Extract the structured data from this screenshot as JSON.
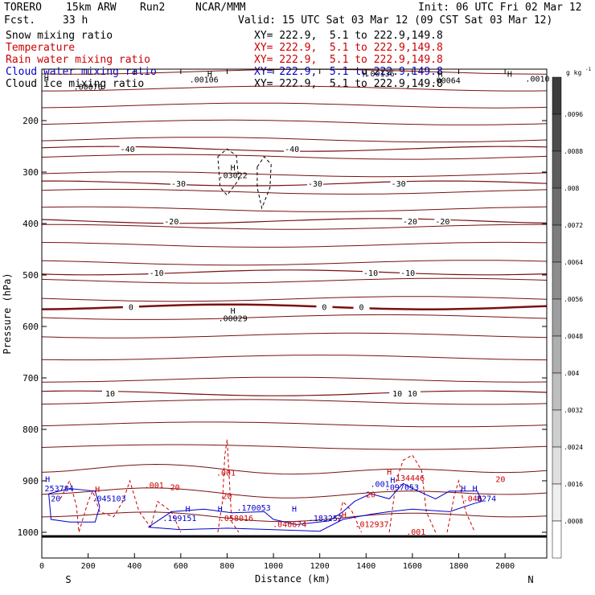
{
  "header": {
    "model": "TORERO",
    "res": "15km ARW",
    "run": "Run2",
    "org": "NCAR/MMM",
    "init": "Init: 06 UTC Fri 02 Mar 12",
    "fcst_label": "Fcst.",
    "fcst_value": "33 h",
    "valid": "Valid: 15 UTC Sat 03 Mar 12 (09 CST Sat 03 Mar 12)"
  },
  "fields": [
    {
      "label": "Snow mixing ratio",
      "xy": "XY= 222.9,  5.1 to 222.9,149.8",
      "color": "#000000"
    },
    {
      "label": "Temperature",
      "xy": "XY= 222.9,  5.1 to 222.9,149.8",
      "color": "#cc0000"
    },
    {
      "label": "Rain water mixing ratio",
      "xy": "XY= 222.9,  5.1 to 222.9,149.8",
      "color": "#cc0000"
    },
    {
      "label": "Cloud water mixing ratio",
      "xy": "XY= 222.9,  5.1 to 222.9,149.8",
      "color": "#0000cc"
    },
    {
      "label": "Cloud ice mixing ratio",
      "xy": "XY= 222.9,  5.1 to 222.9,149.8",
      "color": "#000000"
    }
  ],
  "chart_data": {
    "type": "line",
    "xlabel": "Distance (km)",
    "ylabel": "Pressure (hPa)",
    "xlim": [
      0,
      2180
    ],
    "ylim": [
      1050,
      100
    ],
    "x_ticks": [
      0,
      200,
      400,
      600,
      800,
      1000,
      1200,
      1400,
      1600,
      1800,
      2000
    ],
    "y_ticks": [
      200,
      300,
      400,
      500,
      600,
      700,
      800,
      900,
      1000
    ],
    "end_labels": {
      "left": "S",
      "right": "N"
    },
    "colorbar": {
      "unit": "g kg",
      "unit_sup": "-1",
      "levels": [
        ".0096",
        ".0088",
        ".008",
        ".0072",
        ".0064",
        ".0056",
        ".0048",
        ".004",
        ".0032",
        ".0024",
        ".0016",
        ".0008"
      ]
    },
    "isotherms": [
      {
        "p": 255,
        "label": "-40",
        "label_x": [
          370,
          1080
        ]
      },
      {
        "p": 322,
        "label": "-30",
        "label_x": [
          590,
          1180,
          1540
        ]
      },
      {
        "p": 395,
        "label": "-20",
        "label_x": [
          560,
          1590,
          1730
        ]
      },
      {
        "p": 495,
        "label": "-10",
        "label_x": [
          495,
          1420,
          1580
        ]
      },
      {
        "p": 562,
        "label": "0",
        "label_x": [
          385,
          1220,
          1380
        ],
        "bold": true
      },
      {
        "p": 730,
        "label": "10",
        "label_x": [
          295,
          1535,
          1600
        ]
      }
    ],
    "contour_labels": [
      {
        "x": 200,
        "p": 140,
        "text": ".00076",
        "color": "#000000"
      },
      {
        "x": 700,
        "p": 126,
        "text": ".00106",
        "color": "#000000"
      },
      {
        "x": 1460,
        "p": 114,
        "text": ".00136",
        "color": "#000000"
      },
      {
        "x": 1745,
        "p": 127,
        "text": ".00064",
        "color": "#000000"
      },
      {
        "x": 2140,
        "p": 124,
        "text": ".0010",
        "color": "#000000"
      },
      {
        "x": 825,
        "p": 312,
        "text": ".03022",
        "color": "#000000"
      },
      {
        "x": 825,
        "p": 590,
        "text": ".00029",
        "color": "#000000"
      },
      {
        "x": 75,
        "p": 920,
        "text": "253784",
        "color": "#0000cc"
      },
      {
        "x": 290,
        "p": 940,
        "text": ".045103",
        "color": "#0000cc"
      },
      {
        "x": 595,
        "p": 978,
        "text": ".199151",
        "color": "#0000cc"
      },
      {
        "x": 840,
        "p": 978,
        "text": ".058016",
        "color": "#cc0000"
      },
      {
        "x": 915,
        "p": 958,
        "text": ".170053",
        "color": "#0000cc"
      },
      {
        "x": 1070,
        "p": 990,
        "text": ".040674",
        "color": "#cc0000"
      },
      {
        "x": 1225,
        "p": 978,
        "text": ".183257",
        "color": "#0000cc"
      },
      {
        "x": 1425,
        "p": 990,
        "text": ".012937",
        "color": "#cc0000"
      },
      {
        "x": 1590,
        "p": 900,
        "text": "134446",
        "color": "#cc0000"
      },
      {
        "x": 1555,
        "p": 918,
        "text": ".097053",
        "color": "#0000cc"
      },
      {
        "x": 1860,
        "p": 940,
        "text": ".046",
        "color": "#cc0000"
      },
      {
        "x": 1920,
        "p": 940,
        "text": "8274",
        "color": "#0000cc"
      },
      {
        "x": 485,
        "p": 914,
        "text": ".001",
        "color": "#cc0000"
      },
      {
        "x": 795,
        "p": 890,
        "text": ".001",
        "color": "#cc0000"
      },
      {
        "x": 1460,
        "p": 912,
        "text": ".001",
        "color": "#0000cc"
      },
      {
        "x": 1615,
        "p": 1005,
        "text": ".001",
        "color": "#cc0000"
      },
      {
        "x": 1980,
        "p": 902,
        "text": "20",
        "color": "#cc0000"
      },
      {
        "x": 1420,
        "p": 932,
        "text": "20",
        "color": "#cc0000"
      },
      {
        "x": 575,
        "p": 918,
        "text": "20",
        "color": "#cc0000"
      },
      {
        "x": 800,
        "p": 935,
        "text": "20",
        "color": "#cc0000"
      },
      {
        "x": 60,
        "p": 940,
        "text": "20",
        "color": "#0000cc"
      }
    ],
    "highs": [
      {
        "x": 20,
        "p": 123,
        "color": "#000000"
      },
      {
        "x": 725,
        "p": 115,
        "color": "#000000"
      },
      {
        "x": 1395,
        "p": 115,
        "color": "#000000"
      },
      {
        "x": 1720,
        "p": 115,
        "color": "#000000"
      },
      {
        "x": 2020,
        "p": 115,
        "color": "#000000"
      },
      {
        "x": 825,
        "p": 297,
        "color": "#000000"
      },
      {
        "x": 825,
        "p": 575,
        "color": "#000000"
      },
      {
        "x": 25,
        "p": 902,
        "color": "#0000cc"
      },
      {
        "x": 240,
        "p": 922,
        "color": "#cc0000"
      },
      {
        "x": 630,
        "p": 960,
        "color": "#0000cc"
      },
      {
        "x": 770,
        "p": 960,
        "color": "#0000cc"
      },
      {
        "x": 1090,
        "p": 960,
        "color": "#0000cc"
      },
      {
        "x": 1305,
        "p": 972,
        "color": "#cc0000"
      },
      {
        "x": 1500,
        "p": 888,
        "color": "#cc0000"
      },
      {
        "x": 1515,
        "p": 904,
        "color": "#0000cc"
      },
      {
        "x": 1820,
        "p": 920,
        "color": "#0000cc"
      },
      {
        "x": 1870,
        "p": 920,
        "color": "#0000cc"
      }
    ]
  }
}
